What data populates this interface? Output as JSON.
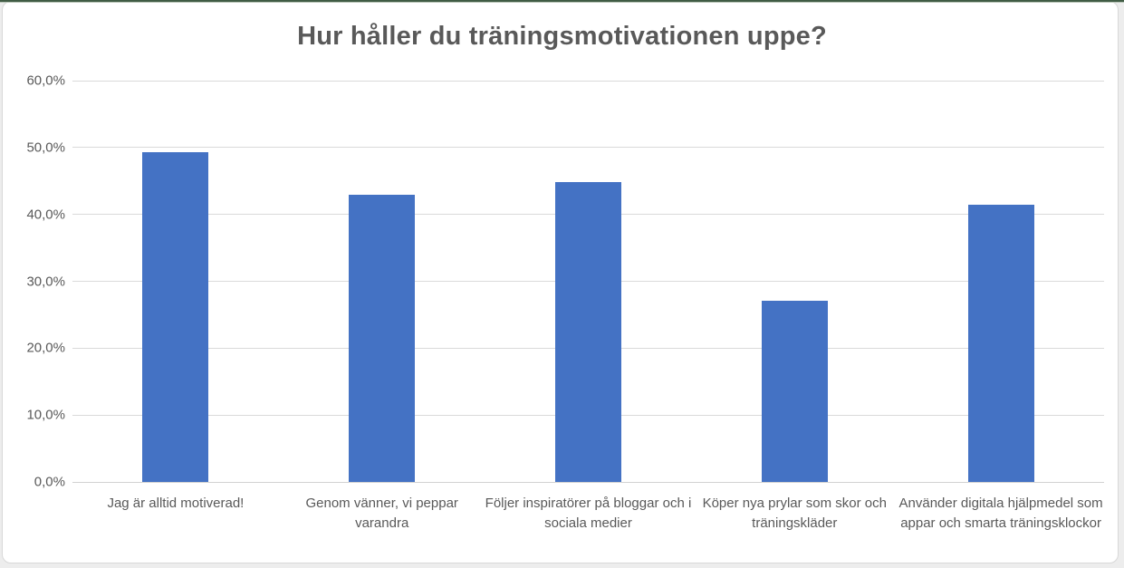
{
  "frame": {
    "page_background": "#EDEDED",
    "card_background": "#FFFFFF",
    "card_border_color": "#D8D8D8",
    "top_strip_dark_color": "#405C44",
    "top_strip_light_color": "#B7C4B6"
  },
  "chart_data": {
    "type": "bar",
    "title": "Hur håller du träningsmotivationen uppe?",
    "categories": [
      "Jag är alltid motiverad!",
      "Genom vänner, vi peppar varandra",
      "Följer inspiratörer på bloggar och i sociala medier",
      "Köper nya prylar som skor och träningskläder",
      "Använder digitala hjälpmedel som appar och smarta träningsklockor"
    ],
    "values": [
      49.3,
      43.0,
      44.9,
      27.1,
      41.4
    ],
    "ylim": [
      0,
      60
    ],
    "yticks": [
      {
        "value": 0,
        "label": "0,0%"
      },
      {
        "value": 10,
        "label": "10,0%"
      },
      {
        "value": 20,
        "label": "20,0%"
      },
      {
        "value": 30,
        "label": "30,0%"
      },
      {
        "value": 40,
        "label": "40,0%"
      },
      {
        "value": 50,
        "label": "50,0%"
      },
      {
        "value": 60,
        "label": "60,0%"
      }
    ],
    "grid": true,
    "legend": false,
    "bar_color": "#4472C4",
    "gridline_color": "#DADADA",
    "axis_line_color": "#D2D2D2",
    "text_color": "#595959"
  }
}
